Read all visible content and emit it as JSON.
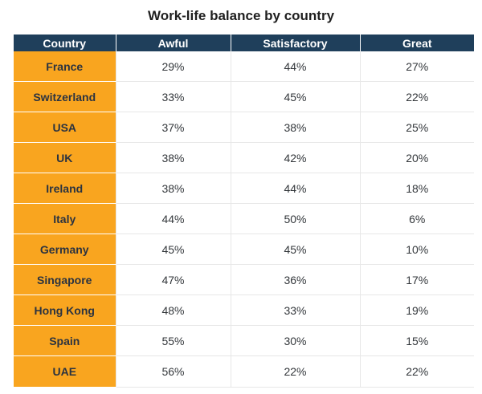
{
  "chart_data": {
    "type": "table",
    "title": "Work-life balance by country",
    "columns": [
      "Country",
      "Awful",
      "Satisfactory",
      "Great"
    ],
    "rows": [
      {
        "country": "France",
        "awful": "29%",
        "satisfactory": "44%",
        "great": "27%"
      },
      {
        "country": "Switzerland",
        "awful": "33%",
        "satisfactory": "45%",
        "great": "22%"
      },
      {
        "country": "USA",
        "awful": "37%",
        "satisfactory": "38%",
        "great": "25%"
      },
      {
        "country": "UK",
        "awful": "38%",
        "satisfactory": "42%",
        "great": "20%"
      },
      {
        "country": "Ireland",
        "awful": "38%",
        "satisfactory": "44%",
        "great": "18%"
      },
      {
        "country": "Italy",
        "awful": "44%",
        "satisfactory": "50%",
        "great": "6%"
      },
      {
        "country": "Germany",
        "awful": "45%",
        "satisfactory": "45%",
        "great": "10%"
      },
      {
        "country": "Singapore",
        "awful": "47%",
        "satisfactory": "36%",
        "great": "17%"
      },
      {
        "country": "Hong Kong",
        "awful": "48%",
        "satisfactory": "33%",
        "great": "19%"
      },
      {
        "country": "Spain",
        "awful": "55%",
        "satisfactory": "30%",
        "great": "15%"
      },
      {
        "country": "UAE",
        "awful": "56%",
        "satisfactory": "22%",
        "great": "22%"
      }
    ]
  },
  "colors": {
    "header_background": "#1f3f5b",
    "header_text": "#ffffff",
    "country_cell_background": "#f9a51f",
    "grid_line": "#e7e7e7"
  }
}
